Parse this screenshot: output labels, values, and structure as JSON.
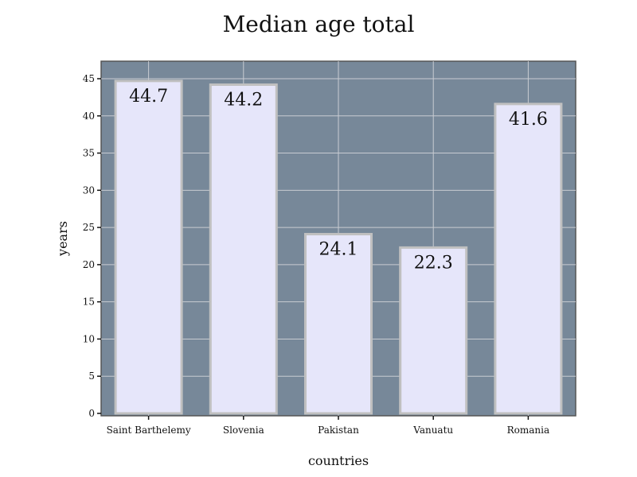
{
  "chart_data": {
    "type": "bar",
    "title": "Median age total",
    "xlabel": "countries",
    "ylabel": "years",
    "categories": [
      "Saint Barthelemy",
      "Slovenia",
      "Pakistan",
      "Vanuatu",
      "Romania"
    ],
    "values": [
      44.7,
      44.2,
      24.1,
      22.3,
      41.6
    ],
    "value_labels": [
      "44.7",
      "44.2",
      "24.1",
      "22.3",
      "41.6"
    ],
    "ylim": [
      0,
      47.5
    ],
    "yticks": [
      0,
      5,
      10,
      15,
      20,
      25,
      30,
      35,
      40,
      45
    ],
    "grid": true,
    "legend": "none",
    "colors": {
      "plot_background": "#778899",
      "bar_fill": "#e6e6fa",
      "bar_stroke": "#c0c0c0",
      "grid": "#c8ccd2",
      "text": "#111111"
    }
  }
}
